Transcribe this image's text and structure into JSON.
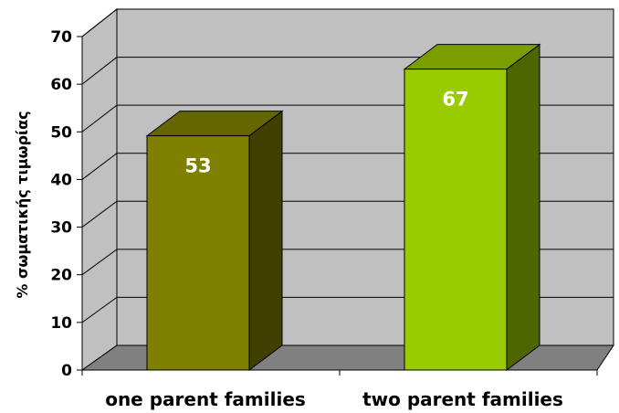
{
  "chart_data": {
    "type": "bar",
    "categories": [
      "one parent families",
      "two parent families"
    ],
    "values": [
      53,
      67
    ],
    "value_labels": [
      "53",
      "67"
    ],
    "ylabel": "% σωματικής τιμωρίας",
    "ylim": [
      0,
      70
    ],
    "yticks": [
      "0",
      "10",
      "20",
      "30",
      "40",
      "50",
      "60",
      "70"
    ],
    "grid": true,
    "style": "3d",
    "colors": {
      "bar1_front": "#808000",
      "bar1_top": "#666600",
      "bar1_side": "#404000",
      "bar2_front": "#99cc00",
      "bar2_top": "#7a9e00",
      "bar2_side": "#4d6600",
      "wall": "#c0c0c0",
      "floor": "#808080"
    }
  }
}
